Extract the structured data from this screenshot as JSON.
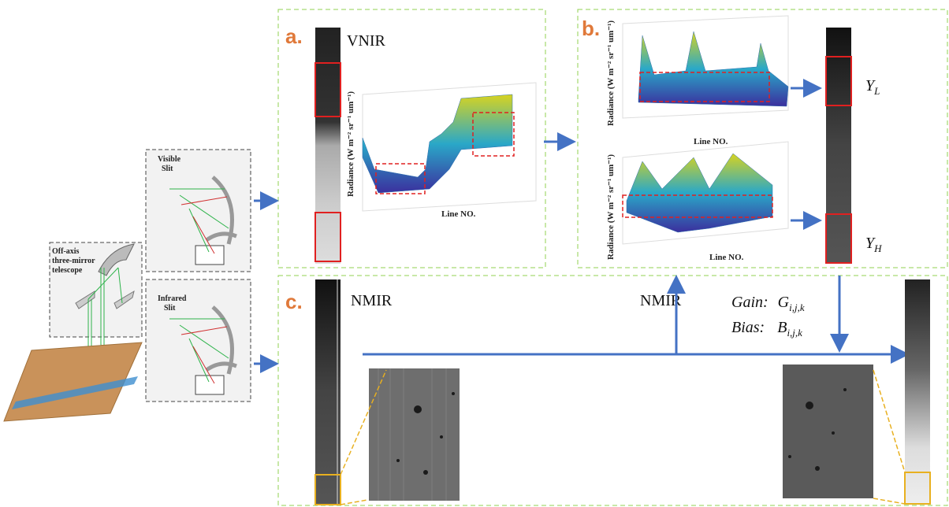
{
  "instrument": {
    "telescope_label": [
      "Off-axis",
      "three-mirror",
      "telescope"
    ],
    "visible_slit": [
      "Visible",
      "Slit"
    ],
    "infrared_slit": [
      "Infrared",
      "Slit"
    ]
  },
  "panels": [
    {
      "tag": "a.",
      "band": "VNIR",
      "plot": {
        "y_label": "Radiance (W m⁻² sr⁻¹ um⁻¹)",
        "x_label": "Line NO."
      }
    },
    {
      "tag": "b.",
      "plots": [
        {
          "y_label": "Radiance (W m⁻² sr⁻¹ um⁻¹)",
          "x_label": "Line NO."
        },
        {
          "y_label": "Radiance (W m⁻² sr⁻¹ um⁻¹)",
          "x_label": "Line NO."
        }
      ],
      "outputs": [
        {
          "symbol": "Y",
          "subscript": "L"
        },
        {
          "symbol": "Y",
          "subscript": "H"
        }
      ]
    },
    {
      "tag": "c.",
      "band": "NMIR",
      "arrow_label": "NMIR"
    }
  ],
  "coefficients": [
    {
      "name": "Gain:",
      "symbol": "G",
      "subscript": "i,j,k"
    },
    {
      "name": "Bias:",
      "symbol": "B",
      "subscript": "i,j,k"
    }
  ]
}
